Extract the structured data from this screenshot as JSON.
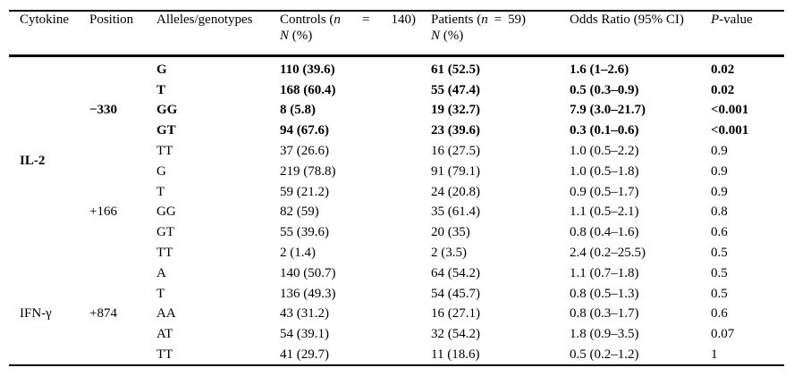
{
  "table": {
    "header": {
      "cytokine": "Cytokine",
      "position": "Position",
      "alleles": "Alleles/genotypes",
      "controls": {
        "pre": "Controls (",
        "n": "n",
        "eq": "=",
        "count": "140)",
        "sub_n": "N",
        "sub_rest": " (%)"
      },
      "patients": {
        "pre": "Patients (",
        "n": "n",
        "eq": "=",
        "count": "59)",
        "sub_n": "N",
        "sub_rest": " (%)"
      },
      "odds_ratio": "Odds Ratio (95% CI)",
      "p_value": {
        "p": "P",
        "rest": "-value"
      }
    },
    "groups": {
      "cytokines": [
        {
          "label": "IL-2"
        },
        {
          "label": "IFN-γ"
        }
      ],
      "positions": [
        {
          "label": "−330"
        },
        {
          "label": "+166"
        },
        {
          "label": "+874"
        }
      ]
    },
    "rows": [
      {
        "allele": "G",
        "controls": "110 (39.6)",
        "patients": "61 (52.5)",
        "or": "1.6 (1–2.6)",
        "p": "0.02",
        "bold": true
      },
      {
        "allele": "T",
        "controls": "168 (60.4)",
        "patients": "55 (47.4)",
        "or": "0.5 (0.3–0.9)",
        "p": "0.02",
        "bold": true
      },
      {
        "allele": "GG",
        "controls": "8 (5.8)",
        "patients": "19 (32.7)",
        "or": "7.9 (3.0–21.7)",
        "p": "<0.001",
        "bold": true
      },
      {
        "allele": "GT",
        "controls": "94 (67.6)",
        "patients": "23 (39.6)",
        "or": "0.3 (0.1–0.6)",
        "p": "<0.001",
        "bold": true
      },
      {
        "allele": "TT",
        "controls": "37 (26.6)",
        "patients": "16 (27.5)",
        "or": "1.0 (0.5–2.2)",
        "p": "0.9",
        "bold": false
      },
      {
        "allele": "G",
        "controls": "219 (78.8)",
        "patients": "91 (79.1)",
        "or": "1.0 (0.5–1.8)",
        "p": "0.9",
        "bold": false
      },
      {
        "allele": "T",
        "controls": "59 (21.2)",
        "patients": "24 (20.8)",
        "or": "0.9 (0.5–1.7)",
        "p": "0.9",
        "bold": false
      },
      {
        "allele": "GG",
        "controls": "82 (59)",
        "patients": "35 (61.4)",
        "or": "1.1 (0.5–2.1)",
        "p": "0.8",
        "bold": false
      },
      {
        "allele": "GT",
        "controls": "55 (39.6)",
        "patients": "20 (35)",
        "or": "0.8 (0.4–1.6)",
        "p": "0.6",
        "bold": false
      },
      {
        "allele": "TT",
        "controls": "2 (1.4)",
        "patients": "2 (3.5)",
        "or": "2.4 (0.2–25.5)",
        "p": "0.5",
        "bold": false
      },
      {
        "allele": "A",
        "controls": "140 (50.7)",
        "patients": "64 (54.2)",
        "or": "1.1 (0.7–1.8)",
        "p": "0.5",
        "bold": false
      },
      {
        "allele": "T",
        "controls": "136 (49.3)",
        "patients": "54 (45.7)",
        "or": "0.8 (0.5–1.3)",
        "p": "0.5",
        "bold": false
      },
      {
        "allele": "AA",
        "controls": "43 (31.2)",
        "patients": "16 (27.1)",
        "or": "0.8 (0.3–1.7)",
        "p": "0.6",
        "bold": false
      },
      {
        "allele": "AT",
        "controls": "54 (39.1)",
        "patients": "32 (54.2)",
        "or": "1.8 (0.9–3.5)",
        "p": "0.07",
        "bold": false
      },
      {
        "allele": "TT",
        "controls": "41 (29.7)",
        "patients": "11 (18.6)",
        "or": "0.5 (0.2–1.2)",
        "p": "1",
        "bold": false
      }
    ]
  }
}
